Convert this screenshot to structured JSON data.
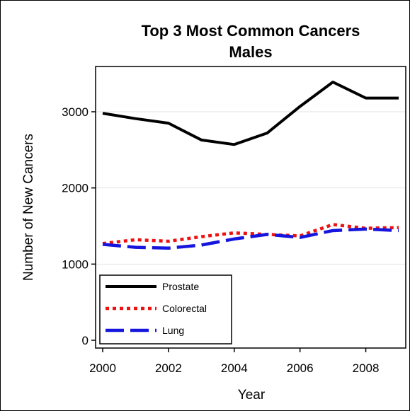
{
  "chart_data": {
    "type": "line",
    "title": "Top 3 Most Common Cancers",
    "subtitle": "Males",
    "xlabel": "Year",
    "ylabel": "Number of New Cancers",
    "x": [
      2000,
      2001,
      2002,
      2003,
      2004,
      2005,
      2006,
      2007,
      2008,
      2009
    ],
    "xlim": [
      2000,
      2009
    ],
    "ylim": [
      0,
      3500
    ],
    "xticks": [
      2000,
      2002,
      2004,
      2006,
      2008
    ],
    "yticks": [
      0,
      1000,
      2000,
      3000
    ],
    "grid": "horizontal",
    "legend_position": "bottom-left",
    "series": [
      {
        "name": "Prostate",
        "values": [
          2980,
          2910,
          2850,
          2630,
          2570,
          2720,
          3070,
          3390,
          3180,
          3180
        ],
        "color": "#000000",
        "style": "solid"
      },
      {
        "name": "Colorectal",
        "values": [
          1270,
          1320,
          1300,
          1360,
          1410,
          1390,
          1370,
          1520,
          1470,
          1480
        ],
        "color": "#ee1111",
        "style": "dotted"
      },
      {
        "name": "Lung",
        "values": [
          1260,
          1220,
          1210,
          1250,
          1330,
          1390,
          1350,
          1440,
          1460,
          1440
        ],
        "color": "#1515dd",
        "style": "dashed"
      }
    ]
  }
}
